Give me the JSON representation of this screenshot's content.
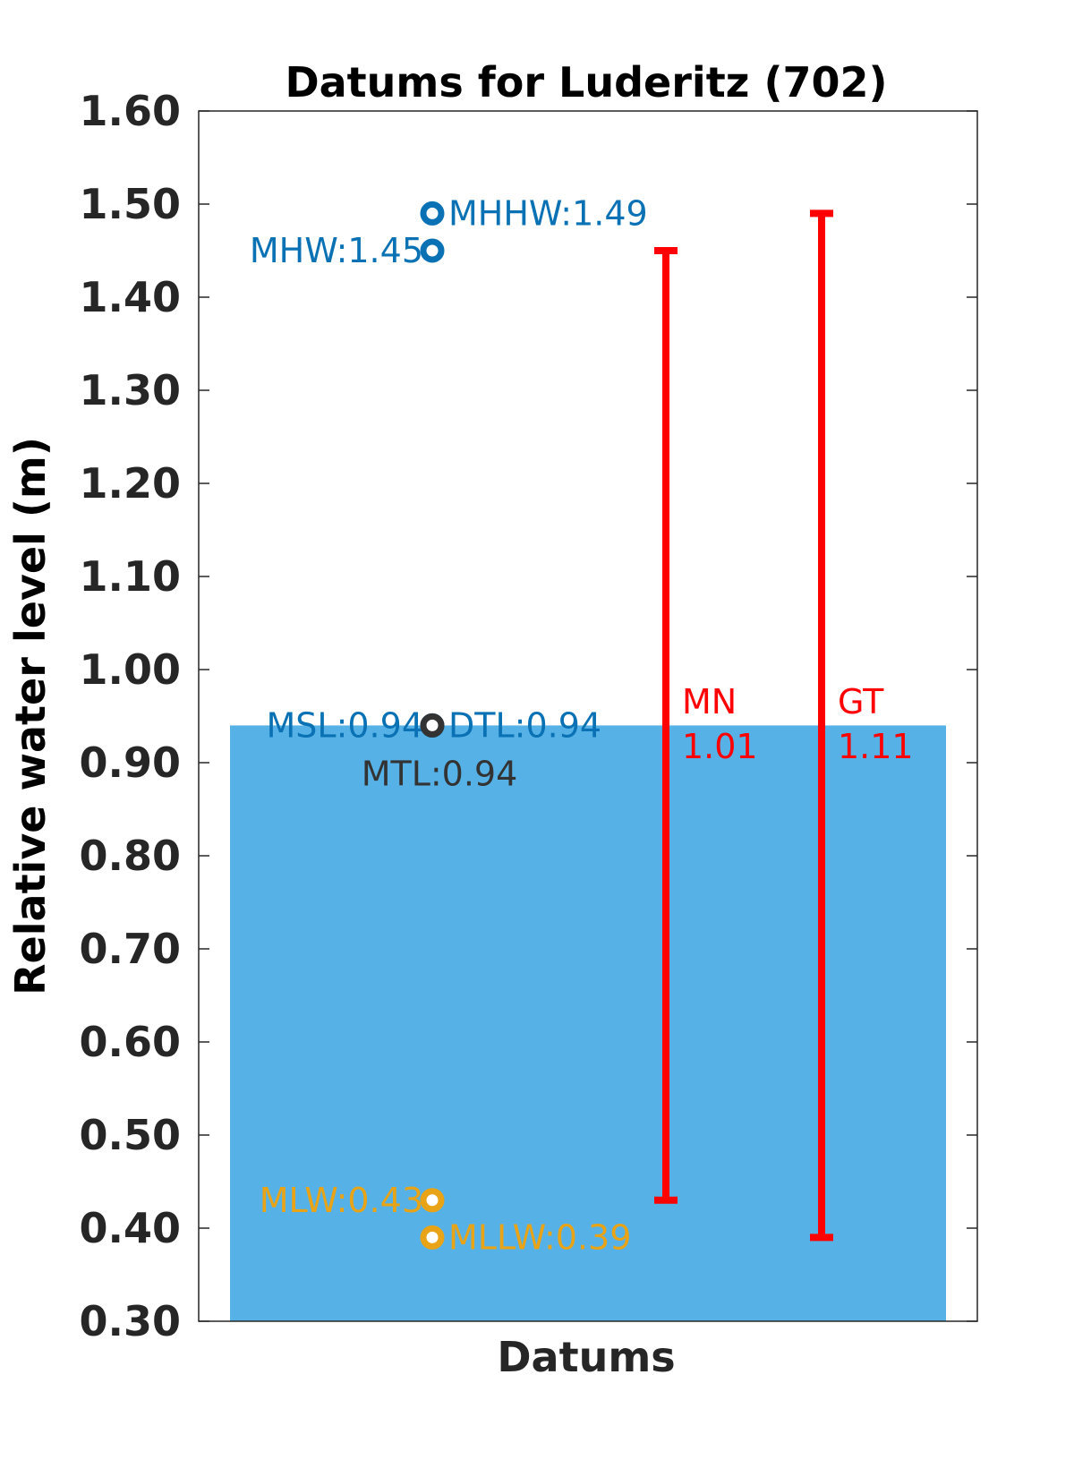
{
  "chart_data": {
    "type": "bar",
    "title": "Datums for Luderitz (702)",
    "xlabel": "Datums",
    "ylabel": "Relative water level (m)",
    "ylim": [
      0.3,
      1.6
    ],
    "yticks": [
      "0.30",
      "0.40",
      "0.50",
      "0.60",
      "0.70",
      "0.80",
      "0.90",
      "1.00",
      "1.10",
      "1.20",
      "1.30",
      "1.40",
      "1.50",
      "1.60"
    ],
    "grid": false,
    "bar": {
      "value": 0.94,
      "color": "#56B2E6"
    },
    "points": [
      {
        "label": "MHHW:1.49",
        "value": 1.49,
        "color": "#0A72B4",
        "side": "right"
      },
      {
        "label": "MHW:1.45",
        "value": 1.45,
        "color": "#0A72B4",
        "side": "left"
      },
      {
        "label": "DTL:0.94",
        "value": 0.94,
        "color": "#0A72B4",
        "side": "right"
      },
      {
        "label": "MSL:0.94",
        "value": 0.94,
        "color": "#0A72B4",
        "side": "left"
      },
      {
        "label": "MTL:0.94",
        "value": 0.94,
        "color": "#333333",
        "side": "below"
      },
      {
        "label": "MLW:0.43",
        "value": 0.43,
        "color": "#E8A317",
        "side": "left"
      },
      {
        "label": "MLLW:0.39",
        "value": 0.39,
        "color": "#E8A317",
        "side": "right"
      }
    ],
    "ranges": [
      {
        "name": "MN",
        "value_label": "1.01",
        "low": 0.43,
        "high": 1.45,
        "color": "#FF0000"
      },
      {
        "name": "GT",
        "value_label": "1.11",
        "low": 0.39,
        "high": 1.49,
        "color": "#FF0000"
      }
    ]
  }
}
